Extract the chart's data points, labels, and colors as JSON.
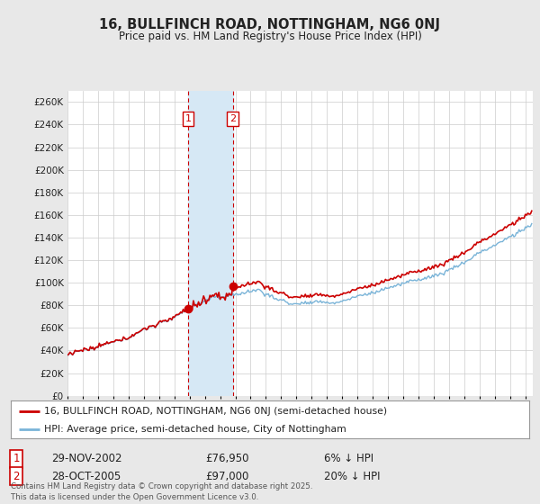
{
  "title": "16, BULLFINCH ROAD, NOTTINGHAM, NG6 0NJ",
  "subtitle": "Price paid vs. HM Land Registry's House Price Index (HPI)",
  "legend_line1": "16, BULLFINCH ROAD, NOTTINGHAM, NG6 0NJ (semi-detached house)",
  "legend_line2": "HPI: Average price, semi-detached house, City of Nottingham",
  "transaction1_date": "29-NOV-2002",
  "transaction1_price": "£76,950",
  "transaction1_hpi": "6% ↓ HPI",
  "transaction1_year": 2002.91,
  "transaction1_value": 76950,
  "transaction2_date": "28-OCT-2005",
  "transaction2_price": "£97,000",
  "transaction2_hpi": "20% ↓ HPI",
  "transaction2_year": 2005.83,
  "transaction2_value": 97000,
  "hpi_color": "#7ab4d8",
  "price_color": "#cc0000",
  "vline_color": "#cc0000",
  "shade_color": "#d6e8f5",
  "background_color": "#e8e8e8",
  "plot_bg_color": "#ffffff",
  "grid_color": "#cccccc",
  "ylim": [
    0,
    270000
  ],
  "yticks": [
    0,
    20000,
    40000,
    60000,
    80000,
    100000,
    120000,
    140000,
    160000,
    180000,
    200000,
    220000,
    240000,
    260000
  ],
  "copyright_text": "Contains HM Land Registry data © Crown copyright and database right 2025.\nThis data is licensed under the Open Government Licence v3.0.",
  "font_color": "#222222"
}
